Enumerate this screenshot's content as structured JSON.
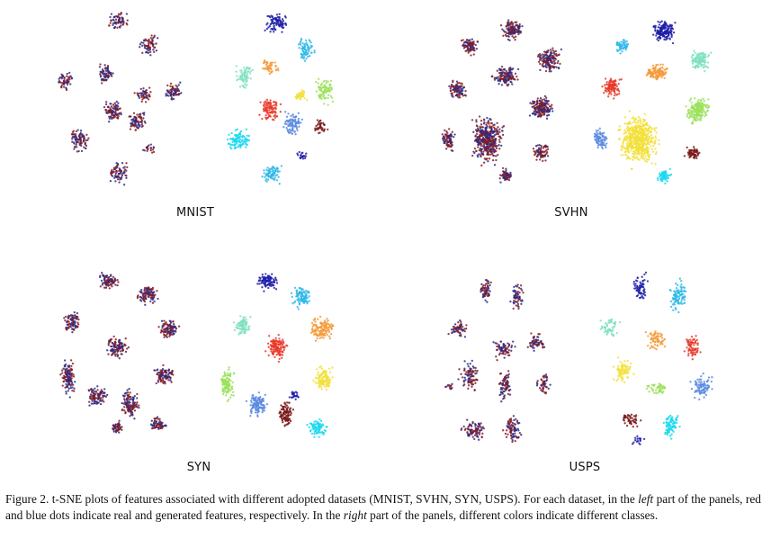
{
  "panels": [
    {
      "name": "MNIST"
    },
    {
      "name": "SVHN"
    },
    {
      "name": "SYN"
    },
    {
      "name": "USPS"
    }
  ],
  "caption": {
    "label": "Figure 2.",
    "part1": " t-SNE plots of features associated with different adopted datasets (MNIST, SVHN, SYN, USPS). For each dataset, in the ",
    "em1": "left",
    "part2": " part of the panels, red and blue dots indicate real and generated features, respectively. In the ",
    "em2": "right",
    "part3": " part of the panels, different colors indicate different classes."
  },
  "colors": {
    "real": "#8b1a1a",
    "generated": "#2a2a8a",
    "classes": [
      "#1f1fa8",
      "#2fb8e8",
      "#7fe0c0",
      "#f59a3a",
      "#e83a2a",
      "#f2e03a",
      "#9be05a",
      "#5a8ae0",
      "#7a1a1a",
      "#1ad8f0"
    ]
  }
}
